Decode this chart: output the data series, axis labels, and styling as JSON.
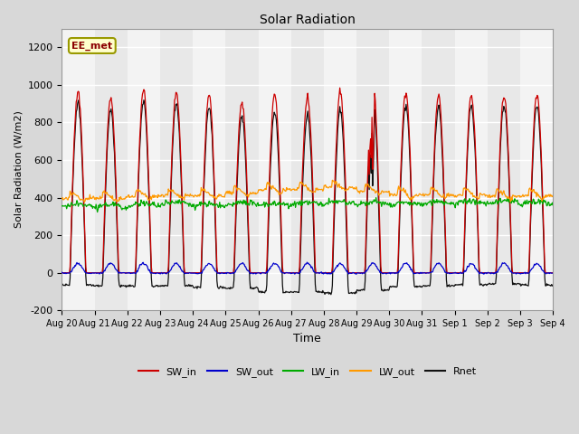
{
  "title": "Solar Radiation",
  "xlabel": "Time",
  "ylabel": "Solar Radiation (W/m2)",
  "ylim": [
    -200,
    1300
  ],
  "yticks": [
    -200,
    0,
    200,
    400,
    600,
    800,
    1000,
    1200
  ],
  "num_days": 15,
  "x_tick_labels": [
    "Aug 20",
    "Aug 21",
    "Aug 22",
    "Aug 23",
    "Aug 24",
    "Aug 25",
    "Aug 26",
    "Aug 27",
    "Aug 28",
    "Aug 29",
    "Aug 30",
    "Aug 31",
    "Sep 1",
    "Sep 2",
    "Sep 3",
    "Sep 4"
  ],
  "colors": {
    "SW_in": "#cc0000",
    "SW_out": "#0000cc",
    "LW_in": "#00aa00",
    "LW_out": "#ff9900",
    "Rnet": "#111111"
  },
  "annotation_text": "EE_met",
  "bg_color": "#d8d8d8",
  "plot_bg_color": "#e8e8e8",
  "alt_band_color": "#d0d0d0",
  "grid_color": "#ffffff",
  "points_per_day": 48,
  "peak_SW": [
    960,
    930,
    970,
    960,
    950,
    910,
    950,
    940,
    960,
    1010,
    955,
    945,
    950,
    945,
    950
  ],
  "LW_in_base": [
    350,
    345,
    355,
    360,
    350,
    360,
    355,
    360,
    365,
    360,
    358,
    362,
    368,
    368,
    362
  ],
  "LW_out_base": [
    405,
    405,
    415,
    418,
    418,
    432,
    448,
    452,
    462,
    442,
    422,
    422,
    422,
    418,
    418
  ]
}
